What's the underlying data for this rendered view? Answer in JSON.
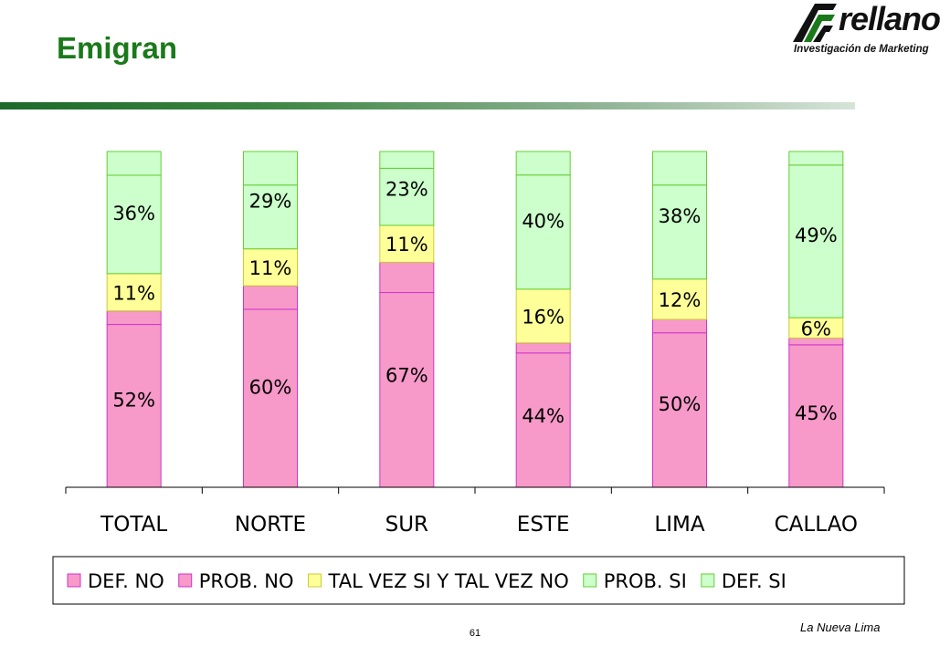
{
  "slide": {
    "title": "Emigran",
    "logo_text": "rellano",
    "logo_subtitle": "Investigación de Marketing",
    "page_number": "61",
    "footer_note": "La Nueva Lima"
  },
  "chart_data": {
    "type": "bar",
    "stacked": true,
    "percent_scale": true,
    "title": "",
    "xlabel": "",
    "ylabel": "",
    "ylim": [
      0,
      100
    ],
    "grid": false,
    "legend_position": "bottom",
    "categories": [
      "TOTAL",
      "NORTE",
      "SUR",
      "ESTE",
      "LIMA",
      "CALLAO"
    ],
    "series": [
      {
        "name": "DEF. NO",
        "color": "#f799c9",
        "values": [
          48,
          53,
          58,
          40,
          46,
          42
        ],
        "labels": [
          "",
          "",
          "",
          "",
          "",
          ""
        ]
      },
      {
        "name": "PROB. NO",
        "color": "#f799c9",
        "values": [
          4,
          7,
          9,
          3,
          4,
          2
        ],
        "labels": [
          "52%",
          "60%",
          "67%",
          "44%",
          "50%",
          "45%"
        ]
      },
      {
        "name": "TAL VEZ SI Y TAL VEZ NO",
        "color": "#ffff99",
        "values": [
          11,
          11,
          11,
          16,
          12,
          6
        ],
        "labels": [
          "11%",
          "11%",
          "11%",
          "16%",
          "12%",
          "6%"
        ]
      },
      {
        "name": "PROB. SI",
        "color": "#ccffcc",
        "values": [
          29,
          19,
          17,
          34,
          28,
          45
        ],
        "labels": [
          "36%",
          "29%",
          "23%",
          "40%",
          "38%",
          "49%"
        ]
      },
      {
        "name": "DEF. SI",
        "color": "#ccffcc",
        "values": [
          7,
          10,
          5,
          7,
          10,
          4
        ],
        "labels": [
          "",
          "",
          "",
          "",
          "",
          ""
        ]
      }
    ],
    "group_labels": [
      {
        "from_series": 0,
        "to_series": 1
      },
      {
        "from_series": 2,
        "to_series": 2
      },
      {
        "from_series": 3,
        "to_series": 4
      }
    ]
  }
}
